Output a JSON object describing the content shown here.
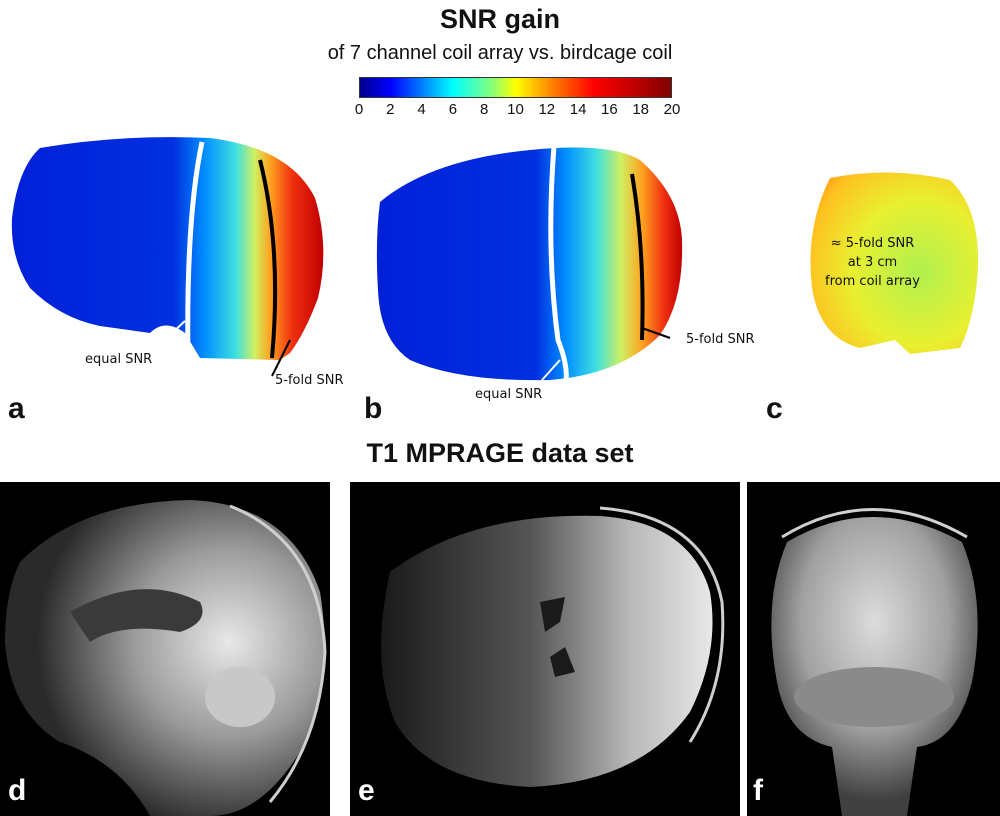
{
  "header": {
    "title": "SNR gain",
    "subtitle": "of 7 channel coil array vs. birdcage coil"
  },
  "colorbar": {
    "ticks": [
      "0",
      "2",
      "4",
      "6",
      "8",
      "10",
      "12",
      "14",
      "16",
      "18",
      "20"
    ],
    "range": [
      0,
      20
    ],
    "colormap": "jet"
  },
  "panels_top": {
    "a": {
      "letter": "a",
      "label_equal": "equal SNR",
      "label_fold": "5-fold SNR"
    },
    "b": {
      "letter": "b",
      "label_equal": "equal SNR",
      "label_fold": "5-fold SNR"
    },
    "c": {
      "letter": "c",
      "note_line1": "≈ 5-fold SNR",
      "note_line2": "at 3 cm",
      "note_line3": "from coil array"
    }
  },
  "section2": {
    "title": "T1 MPRAGE data set",
    "d": {
      "letter": "d"
    },
    "e": {
      "letter": "e"
    },
    "f": {
      "letter": "f"
    }
  },
  "colors": {
    "equal_line": "#ffffff",
    "fold_line": "#000000",
    "mri_background": "#000000"
  }
}
